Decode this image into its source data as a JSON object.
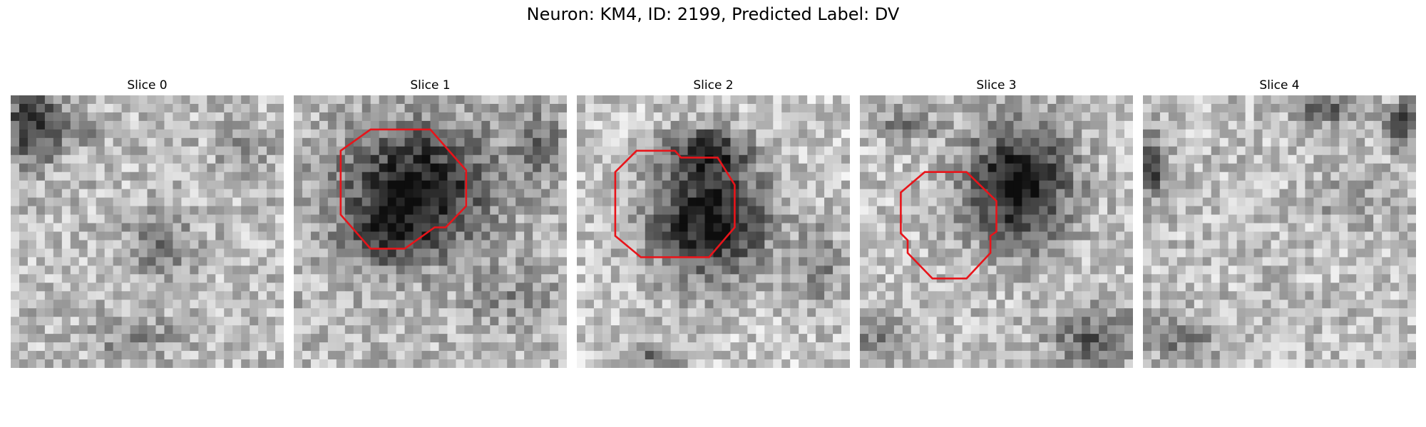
{
  "figure": {
    "title": "Neuron: KM4, ID: 2199, Predicted Label: DV",
    "outline_color": "#e8141a"
  },
  "slices": [
    {
      "title": "Slice 0",
      "has_outline": false
    },
    {
      "title": "Slice 1",
      "has_outline": true
    },
    {
      "title": "Slice 2",
      "has_outline": true
    },
    {
      "title": "Slice 3",
      "has_outline": true
    },
    {
      "title": "Slice 4",
      "has_outline": false
    }
  ]
}
